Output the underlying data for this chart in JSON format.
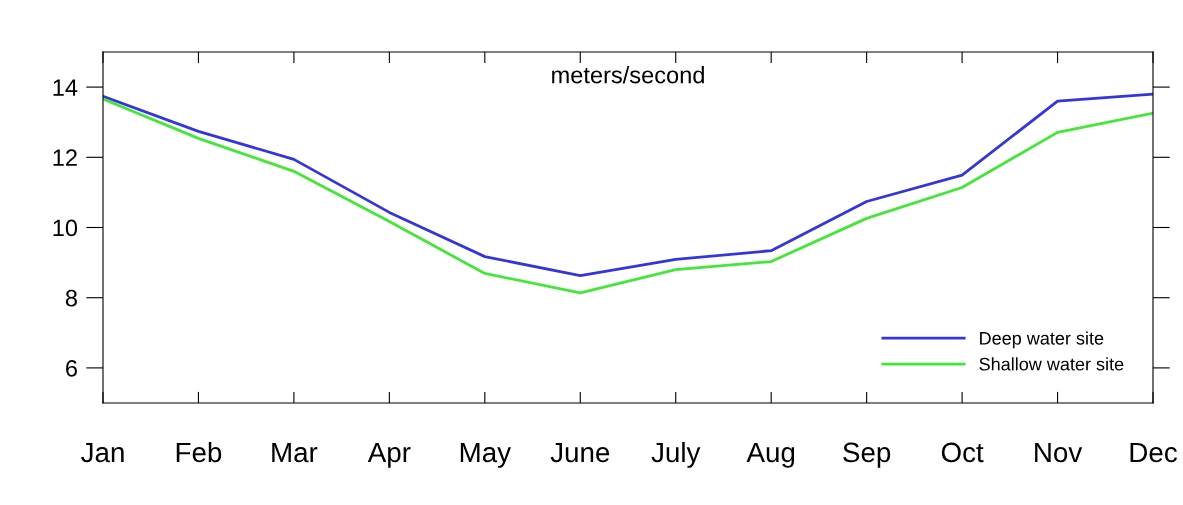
{
  "chart_data": {
    "type": "line",
    "title": "meters/second",
    "categories": [
      "Jan",
      "Feb",
      "Mar",
      "Apr",
      "May",
      "June",
      "July",
      "Aug",
      "Sep",
      "Oct",
      "Nov",
      "Dec"
    ],
    "series": [
      {
        "name": "Deep water site",
        "color": "#3535dd",
        "values": [
          13.74,
          12.74,
          11.94,
          10.43,
          9.17,
          8.63,
          9.09,
          9.34,
          10.74,
          11.49,
          13.6,
          13.8
        ]
      },
      {
        "name": "Shallow water site",
        "color": "#44e63a",
        "values": [
          13.66,
          12.54,
          11.6,
          10.17,
          8.69,
          8.14,
          8.8,
          9.03,
          10.26,
          11.14,
          12.71,
          13.26
        ]
      }
    ],
    "ylim": [
      5,
      15
    ],
    "yticks": [
      6,
      8,
      10,
      12,
      14
    ],
    "grid": false,
    "legend": "bottom right",
    "marker": "none",
    "line_style": "solid"
  }
}
